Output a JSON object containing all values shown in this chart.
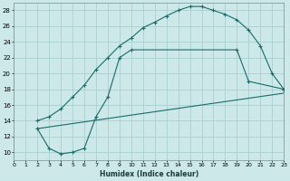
{
  "xlabel": "Humidex (Indice chaleur)",
  "xlim": [
    0,
    23
  ],
  "ylim": [
    9,
    29
  ],
  "xticks": [
    0,
    1,
    2,
    3,
    4,
    5,
    6,
    7,
    8,
    9,
    10,
    11,
    12,
    13,
    14,
    15,
    16,
    17,
    18,
    19,
    20,
    21,
    22,
    23
  ],
  "yticks": [
    10,
    12,
    14,
    16,
    18,
    20,
    22,
    24,
    26,
    28
  ],
  "bg_color": "#cce8e8",
  "grid_color": "#aad0d0",
  "line_color": "#1a6b6b",
  "line1_x": [
    2,
    3,
    4,
    5,
    6,
    7,
    8,
    9,
    10,
    11,
    12,
    13,
    14,
    15,
    16,
    17,
    18,
    19,
    20,
    21,
    22,
    23
  ],
  "line1_y": [
    14.0,
    14.5,
    15.5,
    17.0,
    18.5,
    20.5,
    22.0,
    23.5,
    24.5,
    25.8,
    26.5,
    27.3,
    28.0,
    28.5,
    28.5,
    28.0,
    27.5,
    26.8,
    25.5,
    23.5,
    20.0,
    18.0
  ],
  "line2_x": [
    2,
    3,
    4,
    5,
    6,
    7,
    8,
    9,
    10,
    19,
    20,
    23
  ],
  "line2_y": [
    13.0,
    10.5,
    9.8,
    10.0,
    10.5,
    14.5,
    17.0,
    22.0,
    23.0,
    23.0,
    19.0,
    18.0
  ],
  "line3_x": [
    2,
    23
  ],
  "line3_y": [
    13.0,
    17.5
  ]
}
